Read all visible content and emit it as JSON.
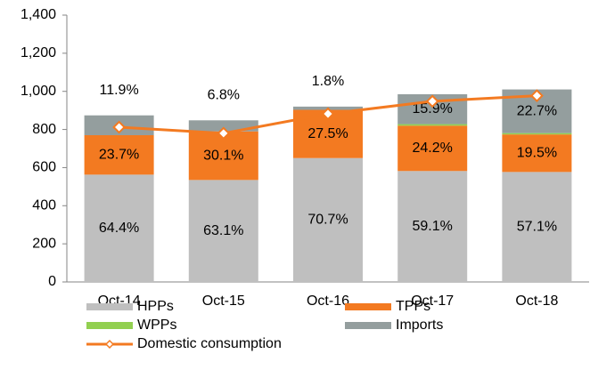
{
  "chart_data": {
    "type": "stacked_bar_line",
    "categories": [
      "Oct-14",
      "Oct-15",
      "Oct-16",
      "Oct-17",
      "Oct-18"
    ],
    "series": [
      {
        "name": "HPPs",
        "color": "#bfbfbf",
        "values": [
          563,
          535,
          650,
          582,
          577
        ],
        "share_labels": [
          "64.4%",
          "63.1%",
          "70.7%",
          "59.1%",
          "57.1%"
        ]
      },
      {
        "name": "TPPs",
        "color": "#f37a21",
        "values": [
          207,
          255,
          253,
          238,
          197
        ],
        "share_labels": [
          "23.7%",
          "30.1%",
          "27.5%",
          "24.2%",
          "19.5%"
        ]
      },
      {
        "name": "WPPs",
        "color": "#92d050",
        "values": [
          0,
          0,
          0,
          8,
          7
        ]
      },
      {
        "name": "Imports",
        "color": "#949e9e",
        "values": [
          104,
          58,
          17,
          157,
          229
        ],
        "share_labels": [
          "11.9%",
          "6.8%",
          "1.8%",
          "15.9%",
          "22.7%"
        ]
      }
    ],
    "line": {
      "name": "Domestic consumption",
      "color": "#f37a21",
      "values": [
        812,
        780,
        882,
        948,
        977
      ]
    },
    "ylim": [
      0,
      1400
    ],
    "yticks": [
      0,
      200,
      400,
      600,
      800,
      {
        "value": 1000,
        "label": "1,000"
      },
      {
        "value": 1200,
        "label": "1,200"
      },
      {
        "value": 1400,
        "label": "1,400"
      }
    ]
  }
}
